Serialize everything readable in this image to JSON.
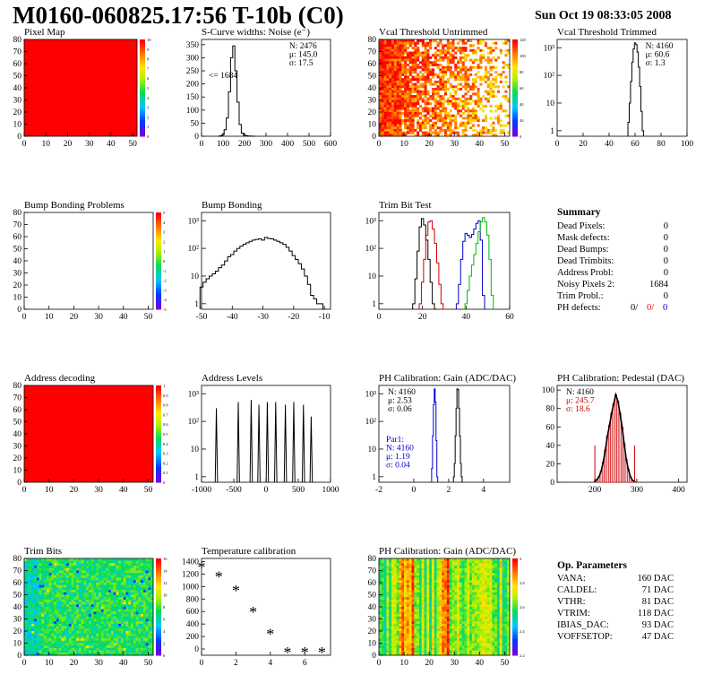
{
  "header": {
    "title": "M0160-060825.17:56 T-10b (C0)",
    "date": "Sun Oct 19 08:33:05 2008"
  },
  "chart_data": [
    {
      "id": "pixel-map",
      "type": "heatmap",
      "title": "Pixel Map",
      "xlim": [
        0,
        52
      ],
      "ylim": [
        0,
        80
      ],
      "xticks": [
        "0",
        "10",
        "20",
        "30",
        "40",
        "50"
      ],
      "yticks": [
        "0",
        "10",
        "20",
        "30",
        "40",
        "50",
        "60",
        "70",
        "80"
      ],
      "fill": "uniform",
      "fill_color": "#ff0000",
      "colorbar": {
        "labels": [
          "0",
          "1",
          "2",
          "3",
          "4",
          "5",
          "6",
          "7",
          "8",
          "9",
          "10"
        ]
      }
    },
    {
      "id": "scurve",
      "type": "bar",
      "title": "S-Curve widths: Noise (e⁻)",
      "xlim": [
        0,
        600
      ],
      "ylim": [
        0,
        370
      ],
      "xticks": [
        "0",
        "100",
        "200",
        "300",
        "400",
        "500",
        "600"
      ],
      "yticks": [
        "0",
        "50",
        "100",
        "150",
        "200",
        "250",
        "300",
        "350"
      ],
      "stats": [
        "N: 2476",
        "μ: 145.0",
        "σ: 17.5"
      ],
      "annotation": "<= 1684",
      "x": [
        80,
        90,
        100,
        110,
        120,
        130,
        140,
        150,
        160,
        170,
        180,
        190,
        200,
        210,
        220,
        230,
        240,
        250
      ],
      "values": [
        0,
        2,
        6,
        25,
        70,
        170,
        300,
        345,
        250,
        130,
        45,
        12,
        4,
        2,
        1,
        1,
        0,
        0
      ]
    },
    {
      "id": "vcal-untrimmed",
      "type": "heatmap",
      "title": "Vcal Threshold Untrimmed",
      "xlim": [
        0,
        52
      ],
      "ylim": [
        0,
        80
      ],
      "xticks": [
        "0",
        "10",
        "20",
        "30",
        "40",
        "50"
      ],
      "yticks": [
        "0",
        "10",
        "20",
        "30",
        "40",
        "50",
        "60",
        "70",
        "80"
      ],
      "fill": "noisy_gradient",
      "colorbar": {
        "labels": [
          "0",
          "20",
          "40",
          "60",
          "80",
          "100",
          "120"
        ]
      }
    },
    {
      "id": "vcal-trimmed",
      "type": "bar",
      "title": "Vcal Threshold Trimmed",
      "xlim": [
        0,
        100
      ],
      "ylog": true,
      "xticks": [
        "0",
        "20",
        "40",
        "60",
        "80",
        "100"
      ],
      "yticks": [
        "1",
        "10",
        "10²",
        "10³"
      ],
      "stats": [
        "N: 4160",
        "μ: 60.6",
        "σ:  1.3"
      ],
      "x": [
        55,
        56,
        57,
        58,
        59,
        60,
        61,
        62,
        63,
        64,
        65,
        66
      ],
      "values": [
        2,
        10,
        60,
        300,
        900,
        1500,
        1300,
        700,
        200,
        40,
        5,
        1
      ]
    },
    {
      "id": "bump-problems",
      "type": "heatmap",
      "title": "Bump Bonding Problems",
      "xlim": [
        0,
        52
      ],
      "ylim": [
        0,
        80
      ],
      "xticks": [
        "0",
        "10",
        "20",
        "30",
        "40",
        "50"
      ],
      "yticks": [
        "0",
        "10",
        "20",
        "30",
        "40",
        "50",
        "60",
        "70",
        "80"
      ],
      "fill": "empty",
      "colorbar": {
        "labels": [
          "-5",
          "-4",
          "-3",
          "-2",
          "-1",
          "0",
          "1",
          "2",
          "3",
          "4",
          "5"
        ]
      }
    },
    {
      "id": "bump-bonding",
      "type": "bar",
      "title": "Bump Bonding",
      "xlim": [
        -50,
        -8
      ],
      "ylog": true,
      "xticks": [
        "-50",
        "-40",
        "-30",
        "-20",
        "-10"
      ],
      "yticks": [
        "1",
        "10",
        "10²",
        "10³"
      ],
      "x": [
        -50,
        -49,
        -48,
        -47,
        -46,
        -45,
        -44,
        -43,
        -42,
        -41,
        -40,
        -39,
        -38,
        -37,
        -36,
        -35,
        -34,
        -33,
        -32,
        -31,
        -30,
        -29,
        -28,
        -27,
        -26,
        -25,
        -24,
        -23,
        -22,
        -21,
        -20,
        -19,
        -18,
        -17,
        -16,
        -15,
        -14,
        -13,
        -12,
        -11,
        -10
      ],
      "values": [
        4,
        6,
        8,
        10,
        12,
        15,
        20,
        25,
        35,
        50,
        60,
        80,
        100,
        120,
        140,
        160,
        180,
        200,
        210,
        220,
        200,
        250,
        230,
        220,
        200,
        180,
        160,
        140,
        110,
        80,
        55,
        40,
        28,
        18,
        10,
        5,
        2,
        1.5,
        1,
        1,
        0
      ]
    },
    {
      "id": "trim-bit-test",
      "type": "line",
      "title": "Trim Bit Test",
      "xlim": [
        0,
        60
      ],
      "ylog": true,
      "xticks": [
        "0",
        "20",
        "40",
        "60"
      ],
      "yticks": [
        "1",
        "10",
        "10²",
        "10³"
      ],
      "series": [
        {
          "color": "#000000",
          "x": [
            16,
            17,
            18,
            19,
            20,
            21,
            22,
            23,
            24,
            25,
            26
          ],
          "values": [
            1,
            8,
            80,
            600,
            1200,
            700,
            200,
            40,
            6,
            1,
            0
          ]
        },
        {
          "color": "#cc0000",
          "x": [
            19,
            20,
            21,
            22,
            23,
            24,
            25,
            26,
            27,
            28,
            29,
            30
          ],
          "values": [
            1,
            6,
            40,
            300,
            900,
            1000,
            500,
            150,
            30,
            5,
            1,
            0
          ]
        },
        {
          "color": "#0000cc",
          "x": [
            36,
            37,
            38,
            39,
            40,
            41,
            42,
            43,
            44,
            45,
            46,
            47,
            48
          ],
          "values": [
            1,
            5,
            40,
            180,
            350,
            300,
            250,
            320,
            500,
            800,
            1000,
            200,
            2
          ]
        },
        {
          "color": "#00bb00",
          "x": [
            40,
            41,
            42,
            43,
            44,
            45,
            46,
            47,
            48,
            49,
            50,
            51,
            52
          ],
          "values": [
            1,
            3,
            10,
            25,
            60,
            150,
            400,
            900,
            1300,
            900,
            300,
            40,
            2
          ]
        }
      ]
    },
    {
      "id": "address-decoding",
      "type": "heatmap",
      "title": "Address decoding",
      "xlim": [
        0,
        52
      ],
      "ylim": [
        0,
        80
      ],
      "xticks": [
        "0",
        "10",
        "20",
        "30",
        "40",
        "50"
      ],
      "yticks": [
        "0",
        "10",
        "20",
        "30",
        "40",
        "50",
        "60",
        "70",
        "80"
      ],
      "fill": "uniform",
      "fill_color": "#ff0000",
      "colorbar": {
        "labels": [
          "0",
          "0.1",
          "0.2",
          "0.3",
          "0.4",
          "0.5",
          "0.6",
          "0.7",
          "0.8",
          "0.9",
          "1"
        ]
      }
    },
    {
      "id": "address-levels",
      "type": "bar",
      "title": "Address Levels",
      "xlim": [
        -1000,
        1000
      ],
      "ylog": true,
      "xticks": [
        "-1000",
        "-500",
        "0",
        "500",
        "1000"
      ],
      "yticks": [
        "1",
        "10",
        "10²",
        "10³"
      ],
      "x": [
        -770,
        -430,
        -230,
        -110,
        20,
        150,
        300,
        430,
        580,
        700
      ],
      "values": [
        300,
        500,
        600,
        400,
        500,
        500,
        400,
        500,
        400,
        150
      ]
    },
    {
      "id": "ph-gain",
      "type": "bar",
      "title": "PH Calibration: Gain (ADC/DAC)",
      "xlim": [
        -2,
        5.5
      ],
      "ylog": true,
      "xticks": [
        "-2",
        "0",
        "2",
        "4"
      ],
      "yticks": [
        "1",
        "10",
        "10²",
        "10³"
      ],
      "stats": [
        "N: 4160",
        "μ: 2.53",
        "σ: 0.06"
      ],
      "stats2": [
        "Par1:",
        "N: 4160",
        "μ: 1.19",
        "σ: 0.04"
      ],
      "series": [
        {
          "color": "#000000",
          "x": [
            2.3,
            2.35,
            2.4,
            2.45,
            2.5,
            2.55,
            2.6,
            2.65,
            2.7,
            2.75
          ],
          "values": [
            1,
            3,
            30,
            300,
            1500,
            1400,
            300,
            30,
            3,
            1
          ]
        },
        {
          "color": "#0000cc",
          "x": [
            1.05,
            1.1,
            1.15,
            1.2,
            1.25,
            1.3,
            1.35
          ],
          "values": [
            2,
            30,
            400,
            1500,
            500,
            20,
            1
          ]
        }
      ]
    },
    {
      "id": "ph-pedestal",
      "type": "bar",
      "title": "PH Calibration: Pedestal (DAC)",
      "xlim": [
        110,
        420
      ],
      "ylim": [
        0,
        105
      ],
      "xticks": [
        "200",
        "300",
        "400"
      ],
      "yticks": [
        "0",
        "20",
        "40",
        "60",
        "80",
        "100"
      ],
      "stats": [
        "N: 4160",
        "μ: 245.7",
        "σ: 18.6"
      ],
      "x": [
        200,
        205,
        210,
        215,
        220,
        225,
        230,
        235,
        240,
        245,
        250,
        255,
        260,
        265,
        270,
        275,
        280,
        285,
        290,
        295
      ],
      "values": [
        1,
        3,
        6,
        12,
        22,
        35,
        50,
        62,
        75,
        85,
        95,
        88,
        75,
        60,
        42,
        25,
        14,
        6,
        2,
        1
      ]
    },
    {
      "id": "trim-bits",
      "type": "heatmap",
      "title": "Trim Bits",
      "xlim": [
        0,
        52
      ],
      "ylim": [
        0,
        80
      ],
      "xticks": [
        "0",
        "10",
        "20",
        "30",
        "40",
        "50"
      ],
      "yticks": [
        "0",
        "10",
        "20",
        "30",
        "40",
        "50",
        "60",
        "70",
        "80"
      ],
      "fill": "noisy_green",
      "colorbar": {
        "labels": [
          "0",
          "2",
          "4",
          "6",
          "8",
          "10",
          "12",
          "14",
          "16"
        ]
      }
    },
    {
      "id": "temperature-calibration",
      "type": "scatter",
      "title": "Temperature calibration",
      "xlim": [
        0,
        7.5
      ],
      "ylim": [
        -100,
        1450
      ],
      "xticks": [
        "0",
        "2",
        "4",
        "6"
      ],
      "yticks": [
        "0",
        "200",
        "400",
        "600",
        "800",
        "1000",
        "1200",
        "1400"
      ],
      "x": [
        0,
        1,
        2,
        3,
        4,
        5,
        6,
        7
      ],
      "values": [
        1320,
        1170,
        950,
        600,
        250,
        -40,
        -40,
        -40
      ]
    },
    {
      "id": "ph-gain-map",
      "type": "heatmap",
      "title": "PH Calibration: Gain (ADC/DAC)",
      "xlim": [
        0,
        52
      ],
      "ylim": [
        0,
        80
      ],
      "xticks": [
        "0",
        "10",
        "20",
        "30",
        "40",
        "50"
      ],
      "yticks": [
        "0",
        "10",
        "20",
        "30",
        "40",
        "50",
        "60",
        "70",
        "80"
      ],
      "fill": "columns",
      "colorbar": {
        "labels": [
          "2.2",
          "2.4",
          "2.6",
          "2.8",
          "3"
        ]
      }
    }
  ],
  "summary": {
    "title": "Summary",
    "rows": [
      {
        "label": "Dead Pixels:",
        "value": "0"
      },
      {
        "label": "Mask defects:",
        "value": "0"
      },
      {
        "label": "Dead Bumps:",
        "value": "0"
      },
      {
        "label": "Dead Trimbits:",
        "value": "0"
      },
      {
        "label": "Address Probl:",
        "value": "0"
      },
      {
        "label": "Noisy Pixels 2:",
        "value": "1684"
      },
      {
        "label": "Trim Probl.:",
        "value": "0"
      }
    ],
    "ph_defects": {
      "label": "PH defects:",
      "v1": "0/",
      "v2": "0/",
      "v3": "0"
    }
  },
  "op_params": {
    "title": "Op. Parameters",
    "rows": [
      {
        "label": "VANA:",
        "value": "160 DAC"
      },
      {
        "label": "CALDEL:",
        "value": "71 DAC"
      },
      {
        "label": "VTHR:",
        "value": "81 DAC"
      },
      {
        "label": "VTRIM:",
        "value": "118 DAC"
      },
      {
        "label": "IBIAS_DAC:",
        "value": "93 DAC"
      },
      {
        "label": "VOFFSETOP:",
        "value": "47 DAC"
      }
    ]
  },
  "colors": {
    "red": "#ff0000",
    "darkred": "#cc0000",
    "blue": "#0000cc",
    "green": "#00bb00"
  }
}
